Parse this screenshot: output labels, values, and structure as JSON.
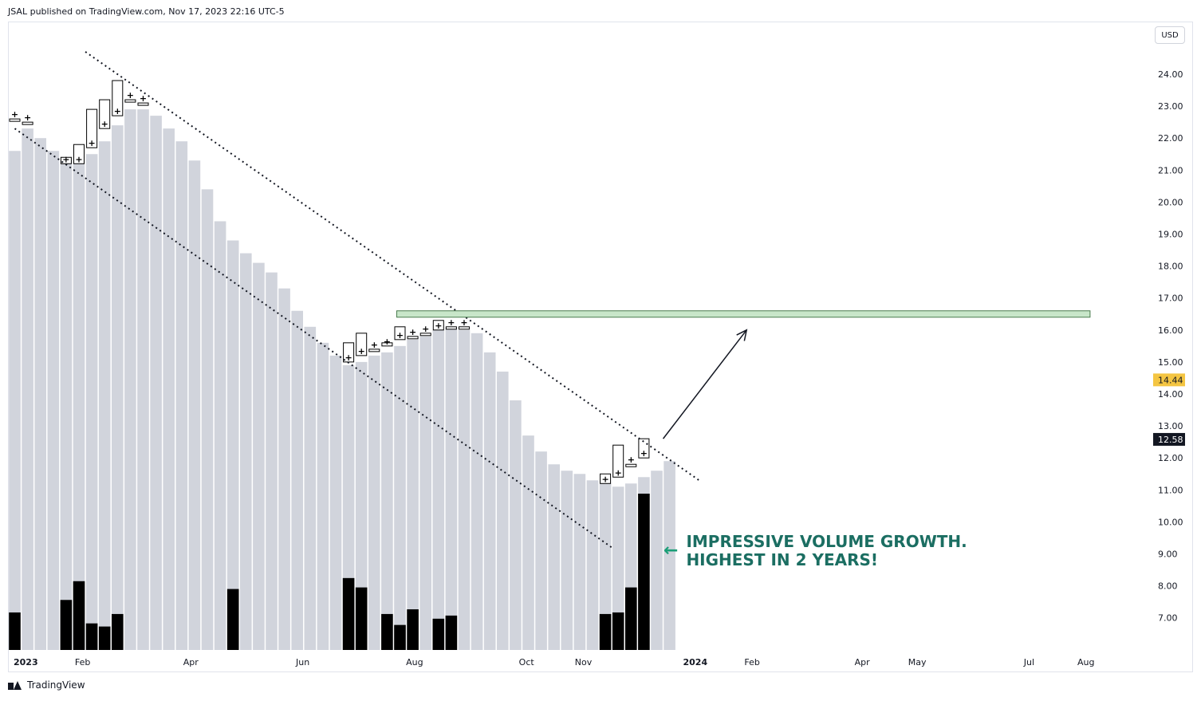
{
  "publisher_line": "JSAL published on TradingView.com, Nov 17, 2023 22:16 UTC-5",
  "footer_brand": "TradingView",
  "currency": "USD",
  "colors": {
    "ma_fill": "#d1d4dc",
    "volume": "#000000",
    "zone_fill": "#c8e6c9",
    "zone_stroke": "#4a7c4e",
    "annotation": "#1b6e62",
    "arrow": "#1b9e77",
    "last_price_bg": "#131722",
    "prev_price_bg": "#f4c542"
  },
  "annotation": {
    "line1": "IMPRESSIVE VOLUME GROWTH.",
    "line2": "HIGHEST IN 2 YEARS!",
    "arrow_icon": "left-arrow-icon"
  },
  "chart_data": {
    "type": "bar",
    "symbol_interval": "weekly",
    "y_axis": {
      "ticks": [
        "24.00",
        "23.00",
        "22.00",
        "21.00",
        "20.00",
        "19.00",
        "18.00",
        "17.00",
        "16.00",
        "15.00",
        "14.00",
        "13.00",
        "12.00",
        "11.00",
        "10.00",
        "9.00",
        "8.00",
        "7.00"
      ],
      "range": [
        6.0,
        25.0
      ]
    },
    "x_axis": {
      "labels": [
        {
          "text": "2023",
          "bold": true,
          "date": "2023-01-01"
        },
        {
          "text": "Feb",
          "bold": false,
          "date": "2023-02-01"
        },
        {
          "text": "Apr",
          "bold": false,
          "date": "2023-04-01"
        },
        {
          "text": "Jun",
          "bold": false,
          "date": "2023-06-01"
        },
        {
          "text": "Aug",
          "bold": false,
          "date": "2023-08-01"
        },
        {
          "text": "Oct",
          "bold": false,
          "date": "2023-10-01"
        },
        {
          "text": "Nov",
          "bold": false,
          "date": "2023-11-01"
        },
        {
          "text": "2024",
          "bold": true,
          "date": "2024-01-01"
        },
        {
          "text": "Feb",
          "bold": false,
          "date": "2024-02-01"
        },
        {
          "text": "Apr",
          "bold": false,
          "date": "2024-04-01"
        },
        {
          "text": "May",
          "bold": false,
          "date": "2024-05-01"
        },
        {
          "text": "Jul",
          "bold": false,
          "date": "2024-07-01"
        },
        {
          "text": "Aug",
          "bold": false,
          "date": "2024-08-01"
        }
      ]
    },
    "moving_average": [
      21.6,
      22.3,
      22.0,
      21.6,
      21.3,
      21.2,
      21.5,
      21.9,
      22.4,
      22.9,
      22.9,
      22.7,
      22.3,
      21.9,
      21.3,
      20.4,
      19.4,
      18.8,
      18.4,
      18.1,
      17.8,
      17.3,
      16.6,
      16.1,
      15.6,
      15.2,
      14.9,
      15.0,
      15.2,
      15.3,
      15.5,
      15.7,
      15.8,
      16.0,
      16.1,
      16.0,
      15.9,
      15.3,
      14.7,
      13.8,
      12.7,
      12.2,
      11.8,
      11.6,
      11.5,
      11.3,
      11.2,
      11.1,
      11.2,
      11.4,
      11.6,
      11.9
    ],
    "price_bars": [
      {
        "i": 0,
        "o": 22.6,
        "c": 22.6
      },
      {
        "i": 1,
        "o": 22.5,
        "c": 22.5
      },
      {
        "i": 4,
        "o": 21.2,
        "c": 21.4
      },
      {
        "i": 5,
        "o": 21.2,
        "c": 21.8
      },
      {
        "i": 6,
        "o": 21.7,
        "c": 22.9
      },
      {
        "i": 7,
        "o": 22.3,
        "c": 23.2
      },
      {
        "i": 8,
        "o": 22.7,
        "c": 23.8
      },
      {
        "i": 9,
        "o": 23.2,
        "c": 23.2
      },
      {
        "i": 10,
        "o": 23.1,
        "c": 23.1
      },
      {
        "i": 26,
        "o": 15.0,
        "c": 15.6
      },
      {
        "i": 27,
        "o": 15.2,
        "c": 15.9
      },
      {
        "i": 28,
        "o": 15.4,
        "c": 15.4
      },
      {
        "i": 29,
        "o": 15.5,
        "c": 15.6
      },
      {
        "i": 30,
        "o": 15.7,
        "c": 16.1
      },
      {
        "i": 31,
        "o": 15.8,
        "c": 15.8
      },
      {
        "i": 32,
        "o": 15.9,
        "c": 15.9
      },
      {
        "i": 33,
        "o": 16.0,
        "c": 16.3
      },
      {
        "i": 34,
        "o": 16.1,
        "c": 16.1
      },
      {
        "i": 35,
        "o": 16.1,
        "c": 16.1
      },
      {
        "i": 46,
        "o": 11.2,
        "c": 11.5
      },
      {
        "i": 47,
        "o": 11.4,
        "c": 12.4
      },
      {
        "i": 48,
        "o": 11.8,
        "c": 11.8
      },
      {
        "i": 49,
        "o": 12.0,
        "c": 12.6
      }
    ],
    "volume": [
      {
        "i": 0,
        "v": 0.24
      },
      {
        "i": 4,
        "v": 0.32
      },
      {
        "i": 5,
        "v": 0.44
      },
      {
        "i": 6,
        "v": 0.17
      },
      {
        "i": 7,
        "v": 0.15
      },
      {
        "i": 8,
        "v": 0.23
      },
      {
        "i": 17,
        "v": 0.39
      },
      {
        "i": 26,
        "v": 0.46
      },
      {
        "i": 27,
        "v": 0.4
      },
      {
        "i": 29,
        "v": 0.23
      },
      {
        "i": 30,
        "v": 0.16
      },
      {
        "i": 31,
        "v": 0.26
      },
      {
        "i": 33,
        "v": 0.2
      },
      {
        "i": 34,
        "v": 0.22
      },
      {
        "i": 46,
        "v": 0.23
      },
      {
        "i": 47,
        "v": 0.24
      },
      {
        "i": 48,
        "v": 0.4
      },
      {
        "i": 49,
        "v": 1.0
      }
    ],
    "trendlines": [
      {
        "name": "upper-trendline",
        "from": {
          "i": 5.5,
          "y": 24.7
        },
        "to": {
          "i": 53.3,
          "y": 11.3
        }
      },
      {
        "name": "lower-trendline",
        "from": {
          "i": 0,
          "y": 22.3
        },
        "to": {
          "i": 46.5,
          "y": 9.2
        }
      }
    ],
    "resistance_zone": {
      "from_i": 30,
      "to_i": 84,
      "y_low": 16.4,
      "y_high": 16.6
    },
    "projection_arrow": {
      "from": {
        "i": 50.5,
        "y": 12.6
      },
      "to": {
        "i": 57,
        "y": 16.0
      }
    },
    "price_labels": [
      {
        "value": "14.44",
        "y": 14.44,
        "style": "prev"
      },
      {
        "value": "12.58",
        "y": 12.58,
        "style": "last"
      }
    ],
    "grid": false,
    "legend": "none"
  }
}
